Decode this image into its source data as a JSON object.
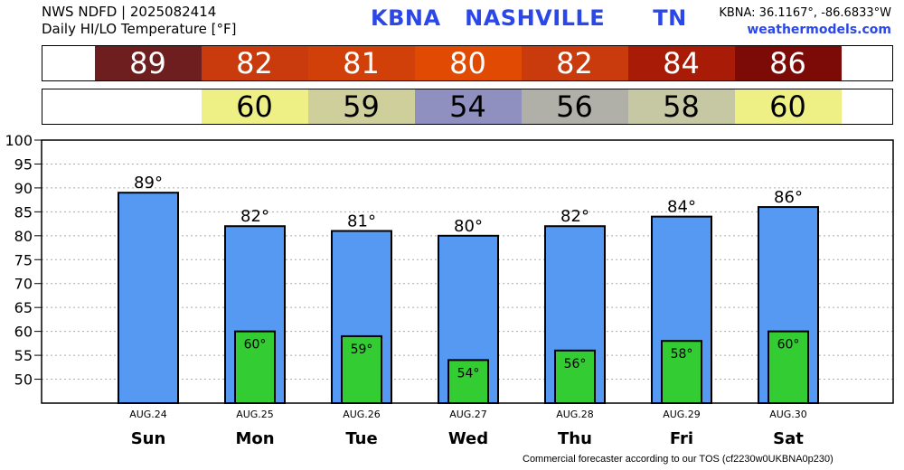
{
  "header": {
    "line1": "NWS NDFD | 2025082414",
    "line2": "Daily HI/LO Temperature [°F]",
    "station": "KBNA   NASHVILLE      TN",
    "coords": "KBNA: 36.1167°, -86.6833°W",
    "site": "weathermodels.com"
  },
  "footer": "Commercial forecaster according to our TOS (cf2230w0UKBNA0p230)",
  "hi_strip": [
    {
      "text": "89",
      "color": "#6e1e1e"
    },
    {
      "text": "82",
      "color": "#c93a0c"
    },
    {
      "text": "81",
      "color": "#d2400a"
    },
    {
      "text": "80",
      "color": "#e04a03"
    },
    {
      "text": "82",
      "color": "#c93a0c"
    },
    {
      "text": "84",
      "color": "#a81b07"
    },
    {
      "text": "86",
      "color": "#7c0a06"
    }
  ],
  "lo_strip": [
    {
      "text": "60",
      "color": "#eef086"
    },
    {
      "text": "59",
      "color": "#cfcf9c"
    },
    {
      "text": "54",
      "color": "#9090c0"
    },
    {
      "text": "56",
      "color": "#b0b0a8"
    },
    {
      "text": "58",
      "color": "#c6c8a4"
    },
    {
      "text": "60",
      "color": "#eef086"
    }
  ],
  "chart_data": {
    "type": "bar",
    "ylim": [
      45,
      100
    ],
    "yticks": [
      50,
      55,
      60,
      65,
      70,
      75,
      80,
      85,
      90,
      95,
      100
    ],
    "grid": true,
    "dates": [
      "AUG.24",
      "AUG.25",
      "AUG.26",
      "AUG.27",
      "AUG.28",
      "AUG.29",
      "AUG.30"
    ],
    "categories": [
      "Sun",
      "Mon",
      "Tue",
      "Wed",
      "Thu",
      "Fri",
      "Sat"
    ],
    "series": [
      {
        "values": [
          89,
          82,
          81,
          80,
          82,
          84,
          86
        ],
        "labels": [
          "89°",
          "82°",
          "81°",
          "80°",
          "82°",
          "84°",
          "86°"
        ],
        "color": "#5599f2"
      },
      {
        "values": [
          null,
          60,
          59,
          54,
          56,
          58,
          60
        ],
        "labels": [
          "",
          "60°",
          "59°",
          "54°",
          "56°",
          "58°",
          "60°"
        ],
        "color": "#33cc33"
      }
    ]
  }
}
